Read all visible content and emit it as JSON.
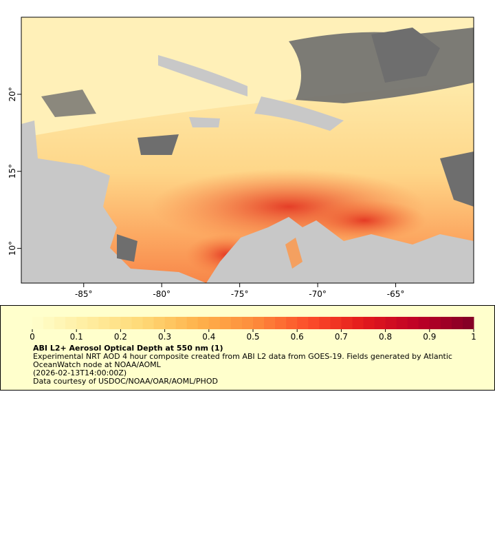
{
  "map": {
    "xlim": [
      -89,
      -60
    ],
    "ylim": [
      7.75,
      25
    ],
    "xticks": [
      {
        "value": -85,
        "label": "-85°"
      },
      {
        "value": -80,
        "label": "-80°"
      },
      {
        "value": -75,
        "label": "-75°"
      },
      {
        "value": -70,
        "label": "-70°"
      },
      {
        "value": -65,
        "label": "-65°"
      }
    ],
    "yticks": [
      {
        "value": 10,
        "label": "10°"
      },
      {
        "value": 15,
        "label": "15°"
      },
      {
        "value": 20,
        "label": "20°"
      }
    ]
  },
  "colorbar": {
    "lim": [
      0,
      1
    ],
    "ticks": [
      0,
      0.1,
      0.2,
      0.3,
      0.4,
      0.5,
      0.6,
      0.7,
      0.8,
      0.9,
      1
    ],
    "colors": [
      "#ffffcc",
      "#ffeda0",
      "#fed976",
      "#feb24c",
      "#fd8d3c",
      "#fc4e2a",
      "#e31a1c",
      "#bd0026",
      "#800026"
    ]
  },
  "legend": {
    "title": "ABI L2+ Aerosol Optical Depth at 550 nm (1)",
    "description": "Experimental NRT AOD 4 hour composite created from ABI L2 data from GOES-19. Fields generated by Atlantic OceanWatch node at NOAA/AOML",
    "time": "(2026-02-13T14:00:00Z)",
    "credit": "Data courtesy of USDOC/NOAA/OAR/AOML/PHOD"
  }
}
